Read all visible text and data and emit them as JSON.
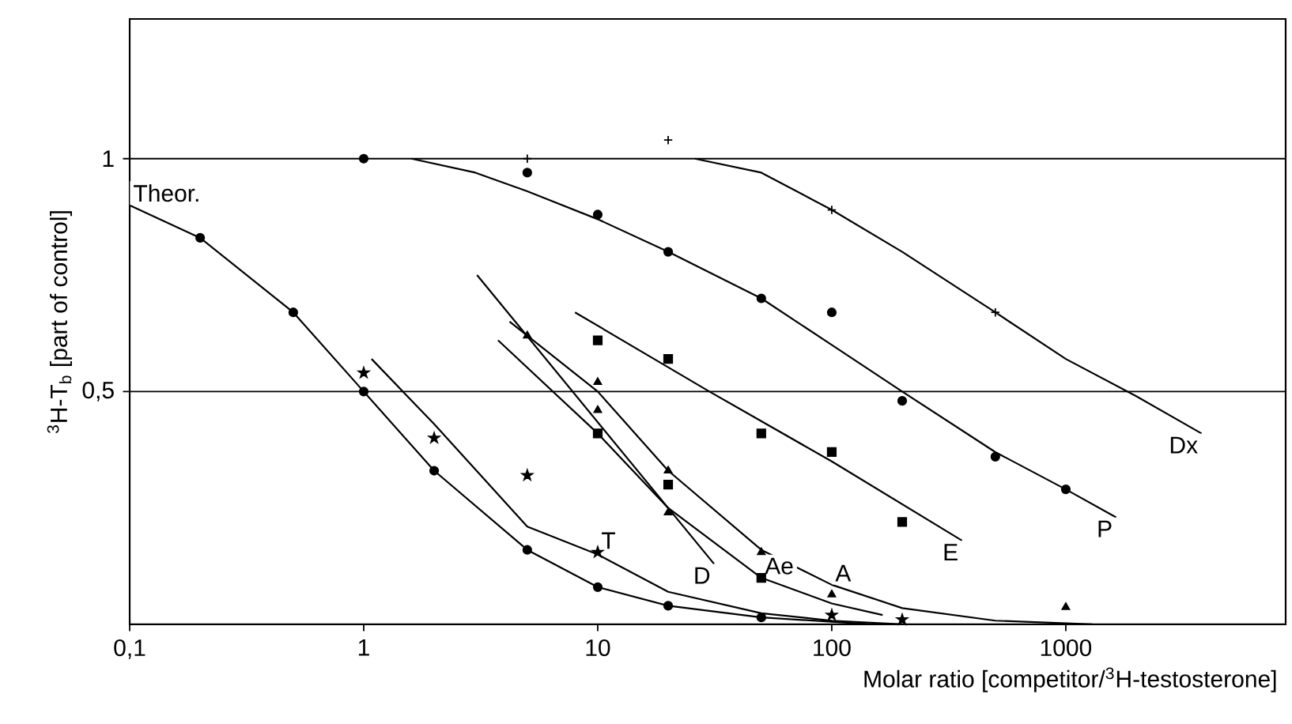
{
  "chart_data": {
    "type": "scatter",
    "xlabel": "Molar ratio [competitor/$^{3}$H-testosterone]",
    "ylabel": "$^{3}$H-T$_{b}$ [part of control]",
    "log": "x",
    "xlim": [
      0.1,
      8700
    ],
    "ylim": [
      0,
      1.3
    ],
    "xticks": [
      {
        "value": 0.1,
        "label": "0,1"
      },
      1,
      10,
      100,
      1000
    ],
    "yticks": [
      {
        "value": 0.5,
        "label": "0,5"
      },
      1
    ],
    "grid": "y",
    "series": [
      {
        "marker": "circle",
        "color": "#000000",
        "x": [
          0.2,
          0.5,
          1,
          2,
          5,
          10,
          20,
          50
        ],
        "values": [
          0.83,
          0.67,
          0.5,
          0.33,
          0.16,
          0.08,
          0.04,
          0.015
        ]
      },
      {
        "type": "line",
        "marker": "none",
        "color": "#000000",
        "x": [
          0.1,
          0.2,
          0.5,
          1,
          2,
          5,
          10,
          20,
          50,
          150
        ],
        "values": [
          0.9,
          0.83,
          0.67,
          0.5,
          0.33,
          0.16,
          0.08,
          0.04,
          0.015,
          0.0
        ]
      },
      {
        "marker": "star",
        "color": "#000000",
        "x": [
          1,
          2,
          5,
          10,
          50,
          100,
          200
        ],
        "values": [
          0.54,
          0.4,
          0.32,
          0.155,
          null,
          0.02,
          0.01
        ]
      },
      {
        "type": "line",
        "marker": "none",
        "color": "#000000",
        "x": [
          1.08,
          2,
          5,
          10,
          20,
          50,
          100,
          200
        ],
        "values": [
          0.57,
          0.43,
          0.21,
          0.15,
          0.07,
          0.024,
          0.008,
          0.0
        ]
      },
      {
        "marker": "triangle",
        "color": "#000000",
        "x": [
          5,
          10,
          20
        ],
        "values": [
          0.62,
          0.46,
          0.24
        ]
      },
      {
        "type": "line",
        "marker": "none",
        "color": "#000000",
        "x": [
          3.05,
          31.4
        ],
        "values": [
          0.75,
          0.13
        ]
      },
      {
        "marker": "triangle",
        "color": "#000000",
        "x": [
          10,
          20,
          50,
          100,
          1000
        ],
        "values": [
          0.52,
          0.33,
          0.155,
          0.064,
          0.037
        ]
      },
      {
        "type": "line",
        "marker": "none",
        "color": "#000000",
        "x": [
          4.2,
          10,
          20,
          50,
          100,
          200,
          500,
          1300
        ],
        "values": [
          0.65,
          0.5,
          0.33,
          0.16,
          0.085,
          0.035,
          0.008,
          0.0
        ]
      },
      {
        "marker": "square",
        "color": "#000000",
        "x": [
          10,
          20,
          50
        ],
        "values": [
          0.41,
          0.3,
          0.1
        ]
      },
      {
        "type": "line",
        "marker": "none",
        "color": "#000000",
        "x": [
          3.75,
          10,
          20,
          50,
          100,
          165
        ],
        "values": [
          0.61,
          0.41,
          0.25,
          0.1,
          0.045,
          0.02
        ]
      },
      {
        "marker": "square",
        "color": "#000000",
        "x": [
          10,
          20,
          50,
          100,
          200
        ],
        "values": [
          0.61,
          0.57,
          0.41,
          0.37,
          0.22
        ]
      },
      {
        "type": "line",
        "marker": "none",
        "color": "#000000",
        "x": [
          8,
          30,
          100,
          360
        ],
        "values": [
          0.67,
          0.5,
          0.35,
          0.18
        ]
      },
      {
        "marker": "circle",
        "color": "#000000",
        "x": [
          1,
          5,
          10,
          20,
          50,
          100,
          200,
          500,
          1000
        ],
        "values": [
          1.0,
          0.97,
          0.88,
          0.8,
          0.7,
          0.67,
          0.48,
          0.36,
          0.29
        ]
      },
      {
        "type": "line",
        "marker": "none",
        "color": "#000000",
        "x": [
          1.6,
          3,
          5,
          10,
          20,
          50,
          100,
          200,
          500,
          1000,
          1640
        ],
        "values": [
          1.0,
          0.97,
          0.93,
          0.87,
          0.8,
          0.7,
          0.6,
          0.5,
          0.37,
          0.29,
          0.23
        ]
      },
      {
        "marker": "cross",
        "color": "#000000",
        "x": [
          5,
          20,
          100,
          500
        ],
        "values": [
          1.0,
          1.04,
          0.89,
          0.67
        ]
      },
      {
        "type": "line",
        "marker": "none",
        "color": "#000000",
        "x": [
          26,
          50,
          100,
          200,
          500,
          1000,
          2000,
          3800
        ],
        "values": [
          1.0,
          0.97,
          0.89,
          0.8,
          0.67,
          0.57,
          0.49,
          0.41
        ]
      }
    ],
    "annotations": [
      {
        "text": "Theor.",
        "x": 0.1,
        "y": 0.9
      },
      {
        "text": "T",
        "x": 10,
        "y": 0.155
      },
      {
        "text": "D",
        "x": 31.4,
        "y": 0.13
      },
      {
        "text": "A",
        "x": 100,
        "y": 0.085
      },
      {
        "text": "Ae",
        "x": 50,
        "y": 0.1
      },
      {
        "text": "E",
        "x": 360,
        "y": 0.18
      },
      {
        "text": "P",
        "x": 1640,
        "y": 0.23
      },
      {
        "text": "Dx",
        "x": 3800,
        "y": 0.41
      }
    ]
  }
}
